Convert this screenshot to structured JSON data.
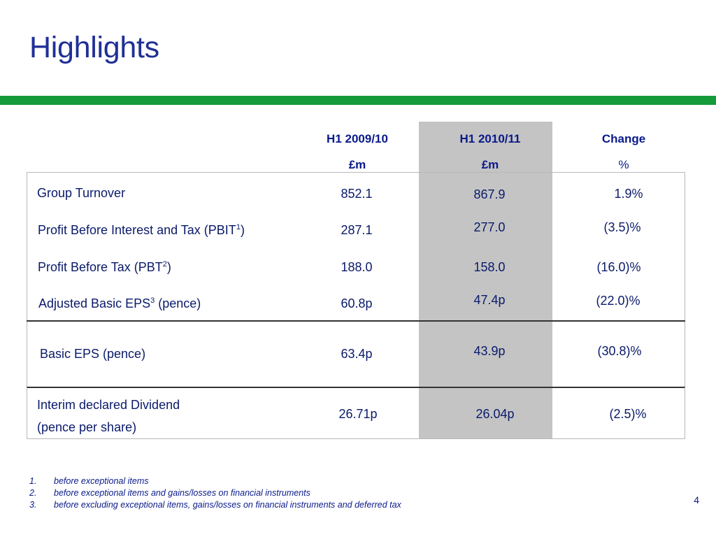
{
  "title": "Highlights",
  "columns": {
    "col1": {
      "line1": "H1 2009/10",
      "line2": "£m"
    },
    "col2": {
      "line1": "H1 2010/11",
      "line2": "£m"
    },
    "col3": {
      "line1": "Change",
      "line2": "%"
    }
  },
  "rows": [
    {
      "label": "Group Turnover",
      "sup": "",
      "label_suffix": "",
      "v1": "852.1",
      "v2": "867.9",
      "v3": "1.9%"
    },
    {
      "label": "Profit Before Interest and Tax (PBIT",
      "sup": "1",
      "label_suffix": ")",
      "v1": "287.1",
      "v2": "277.0",
      "v3": "(3.5)%"
    },
    {
      "label": "Profit Before Tax (PBT",
      "sup": "2",
      "label_suffix": ")",
      "v1": "188.0",
      "v2": "158.0",
      "v3": "(16.0)%"
    },
    {
      "label": "Adjusted Basic EPS",
      "sup": "3",
      "label_suffix": " (pence)",
      "v1": "60.8p",
      "v2": "47.4p",
      "v3": "(22.0)%"
    },
    {
      "label": "Basic EPS (pence)",
      "sup": "",
      "label_suffix": "",
      "v1": "63.4p",
      "v2": "43.9p",
      "v3": "(30.8)%"
    },
    {
      "label": "Interim declared Dividend",
      "label_line2": "(pence per share)",
      "sup": "",
      "label_suffix": "",
      "v1": "26.71p",
      "v2": "26.04p",
      "v3": "(2.5)%"
    }
  ],
  "footnotes": [
    {
      "num": "1.",
      "text": "before exceptional items"
    },
    {
      "num": "2.",
      "text": "before exceptional items and gains/losses on financial instruments"
    },
    {
      "num": "3.",
      "text": "before excluding exceptional items, gains/losses on financial instruments and deferred tax"
    }
  ],
  "page_number": "4",
  "colors": {
    "title": "#1f2f96",
    "accent_bar": "#169b3a",
    "highlight_column": "#c4c4c4"
  }
}
